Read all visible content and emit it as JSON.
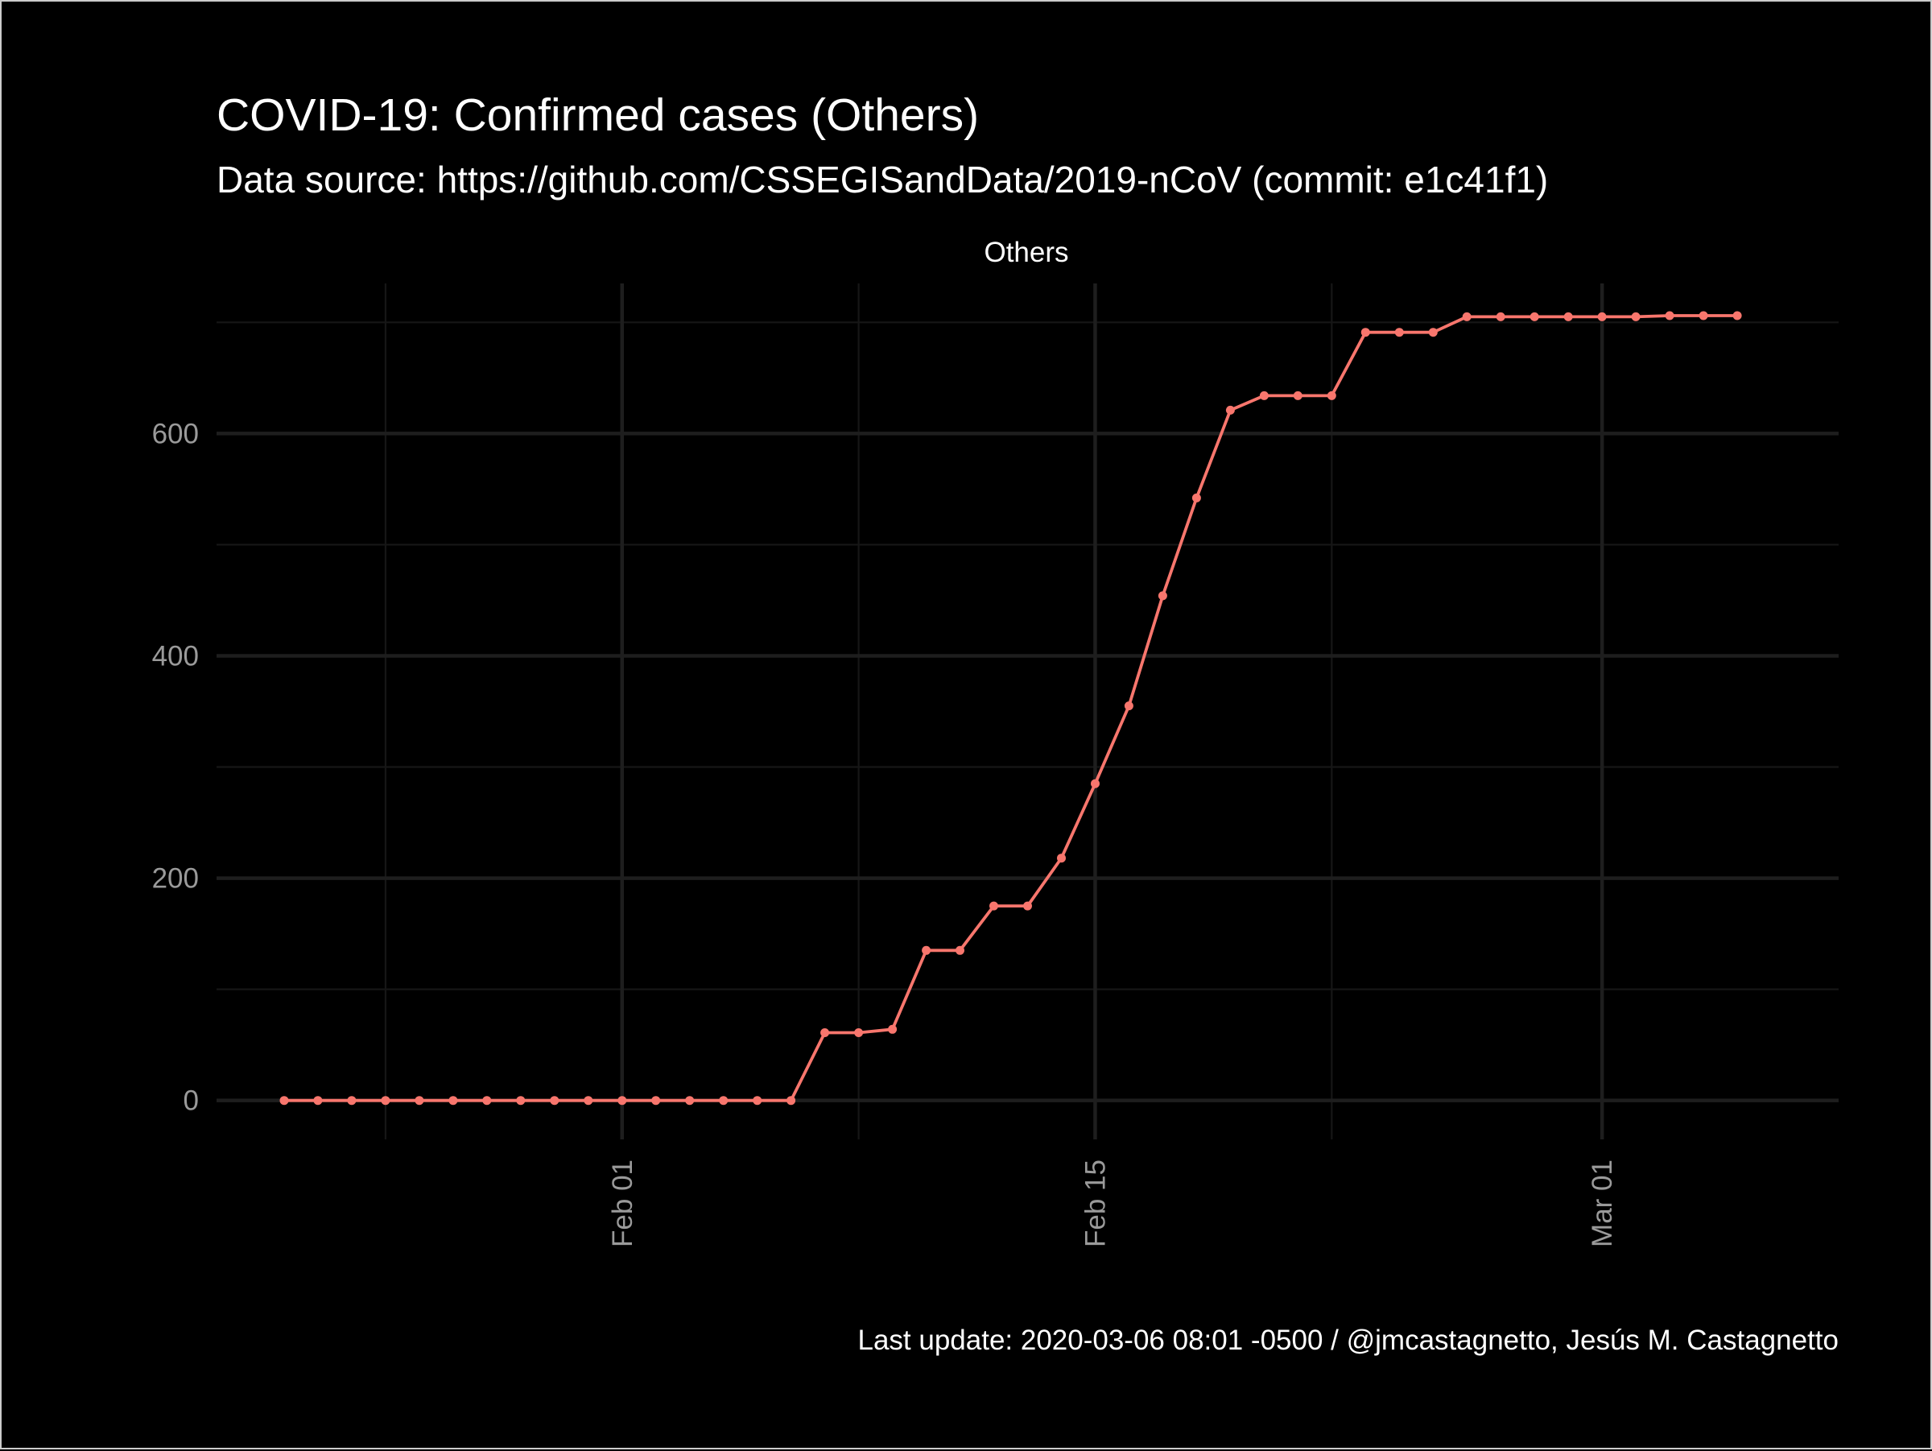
{
  "title": "COVID-19: Confirmed cases (Others)",
  "subtitle": "Data source: https://github.com/CSSEGISandData/2019-nCoV (commit: e1c41f1)",
  "caption": "Last update:  2020-03-06 08:01 -0500 / @jmcastagnetto, Jesús M. Castagnetto",
  "colors": {
    "background": "#000000",
    "border": "#cccccc",
    "series": "#f8766d",
    "text": "#ffffff",
    "tick_text": "#9a9a9a"
  },
  "chart_data": {
    "type": "line",
    "facet_label": "Others",
    "title": "COVID-19: Confirmed cases (Others)",
    "xlabel": "",
    "ylabel": "",
    "x_axis": {
      "type": "date",
      "range": [
        "2020-01-20",
        "2020-03-08"
      ],
      "major_ticks": [
        {
          "date": "2020-02-01",
          "label": "Feb 01"
        },
        {
          "date": "2020-02-15",
          "label": "Feb 15"
        },
        {
          "date": "2020-03-01",
          "label": "Mar 01"
        }
      ],
      "minor_ticks": [
        "2020-01-25",
        "2020-02-08",
        "2020-02-22"
      ]
    },
    "y_axis": {
      "range": [
        -35,
        735
      ],
      "major_ticks": [
        0,
        200,
        400,
        600
      ],
      "minor_ticks": [
        100,
        300,
        500,
        700
      ]
    },
    "grid": true,
    "legend": "none",
    "series": [
      {
        "name": "Others",
        "x_start": "2020-01-22",
        "values": [
          0,
          0,
          0,
          0,
          0,
          0,
          0,
          0,
          0,
          0,
          0,
          0,
          0,
          0,
          0,
          0,
          61,
          61,
          64,
          135,
          135,
          175,
          175,
          218,
          285,
          355,
          454,
          542,
          621,
          634,
          634,
          634,
          691,
          691,
          691,
          705,
          705,
          705,
          705,
          705,
          705,
          706,
          706,
          706
        ]
      }
    ]
  }
}
